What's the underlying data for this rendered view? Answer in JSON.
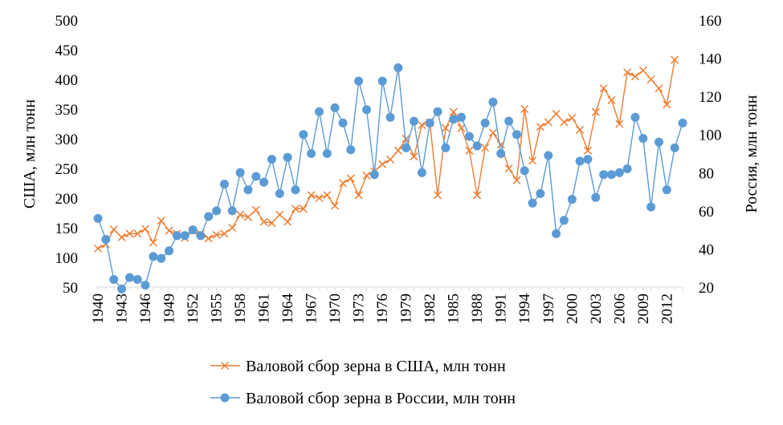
{
  "chart_data": {
    "type": "line",
    "y_left": {
      "label": "США, млн тонн",
      "min": 50,
      "max": 500,
      "ticks": [
        50,
        100,
        150,
        200,
        250,
        300,
        350,
        400,
        450,
        500
      ]
    },
    "y_right": {
      "label": "Россия, млн тонн",
      "min": 20,
      "max": 160,
      "ticks": [
        20,
        40,
        60,
        80,
        100,
        120,
        140,
        160
      ]
    },
    "x": [
      1940,
      1941,
      1942,
      1943,
      1944,
      1945,
      1946,
      1947,
      1948,
      1949,
      1950,
      1951,
      1952,
      1953,
      1954,
      1955,
      1956,
      1957,
      1958,
      1959,
      1960,
      1961,
      1962,
      1963,
      1964,
      1965,
      1966,
      1967,
      1968,
      1969,
      1970,
      1971,
      1972,
      1973,
      1974,
      1975,
      1976,
      1977,
      1978,
      1979,
      1980,
      1981,
      1982,
      1983,
      1984,
      1985,
      1986,
      1987,
      1988,
      1989,
      1990,
      1991,
      1992,
      1993,
      1994,
      1995,
      1996,
      1997,
      1998,
      1999,
      2000,
      2001,
      2002,
      2003,
      2004,
      2005,
      2006,
      2007,
      2008,
      2009,
      2010,
      2011,
      2012,
      2013,
      2014
    ],
    "x_tick_labels": [
      "1940",
      "1943",
      "1946",
      "1949",
      "1952",
      "1955",
      "1958",
      "1961",
      "1964",
      "1967",
      "1970",
      "1973",
      "1976",
      "1979",
      "1982",
      "1985",
      "1988",
      "1991",
      "1994",
      "1997",
      "2000",
      "2003",
      "2006",
      "2009",
      "2012"
    ],
    "grid": false,
    "legend_position": "bottom",
    "series": [
      {
        "name": "Валовой сбор зерна в США, млн тонн",
        "axis": "left",
        "color": "#ED7D31",
        "marker": "x",
        "values": [
          115,
          122,
          147,
          134,
          140,
          140,
          148,
          125,
          162,
          145,
          140,
          133,
          145,
          140,
          132,
          138,
          140,
          150,
          172,
          168,
          180,
          160,
          158,
          172,
          160,
          182,
          182,
          205,
          200,
          205,
          187,
          225,
          233,
          205,
          238,
          245,
          257,
          265,
          280,
          300,
          270,
          323,
          327,
          205,
          318,
          345,
          318,
          280,
          205,
          285,
          310,
          290,
          250,
          230,
          350,
          263,
          320,
          328,
          342,
          328,
          335,
          315,
          280,
          345,
          385,
          365,
          325,
          412,
          405,
          415,
          400,
          385,
          358,
          433,
          null
        ]
      },
      {
        "name": "Валовой сбор зерна в России, млн тонн",
        "axis": "right",
        "color": "#5B9BD5",
        "marker": "circle",
        "values": [
          56,
          45,
          24,
          19,
          25,
          24,
          21,
          36,
          35,
          39,
          47,
          47,
          50,
          47,
          57,
          60,
          74,
          60,
          80,
          71,
          78,
          75,
          87,
          69,
          88,
          71,
          100,
          90,
          112,
          90,
          114,
          106,
          92,
          128,
          113,
          79,
          128,
          109,
          135,
          93,
          107,
          80,
          106,
          112,
          93,
          108,
          109,
          99,
          94,
          106,
          117,
          90,
          107,
          100,
          81,
          64,
          69,
          89,
          48,
          55,
          66,
          86,
          87,
          67,
          79,
          79,
          80,
          82,
          109,
          98,
          62,
          96,
          71,
          93,
          106
        ]
      }
    ]
  }
}
